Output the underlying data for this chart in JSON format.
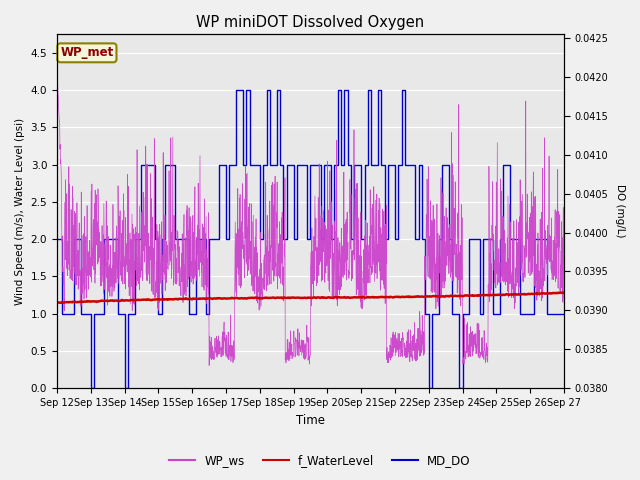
{
  "title": "WP miniDOT Dissolved Oxygen",
  "xlabel": "Time",
  "ylabel_left": "Wind Speed (m/s), Water Level (psi)",
  "ylabel_right": "DO (mg/L)",
  "ylim_left": [
    0.0,
    4.75
  ],
  "ylim_right": [
    0.038,
    0.04255
  ],
  "yticks_left": [
    0.0,
    0.5,
    1.0,
    1.5,
    2.0,
    2.5,
    3.0,
    3.5,
    4.0,
    4.5
  ],
  "yticks_right": [
    0.038,
    0.0385,
    0.039,
    0.0395,
    0.04,
    0.0405,
    0.041,
    0.0415,
    0.042,
    0.0425
  ],
  "background_color": "#f0f0f0",
  "plot_bg_color": "#e8e8e8",
  "wp_met_label": "WP_met",
  "wp_met_text_color": "#8B0000",
  "wp_met_box_facecolor": "#f5f5dc",
  "wp_met_box_edgecolor": "#8B8000",
  "legend_labels": [
    "WP_ws",
    "f_WaterLevel",
    "MD_DO"
  ],
  "color_ws": "#cc44cc",
  "color_wl": "#cc0000",
  "color_do": "#0000cc",
  "xtick_days": [
    12,
    13,
    14,
    15,
    16,
    17,
    18,
    19,
    20,
    21,
    22,
    23,
    24,
    25,
    26,
    27
  ],
  "xlim": [
    12,
    27
  ]
}
